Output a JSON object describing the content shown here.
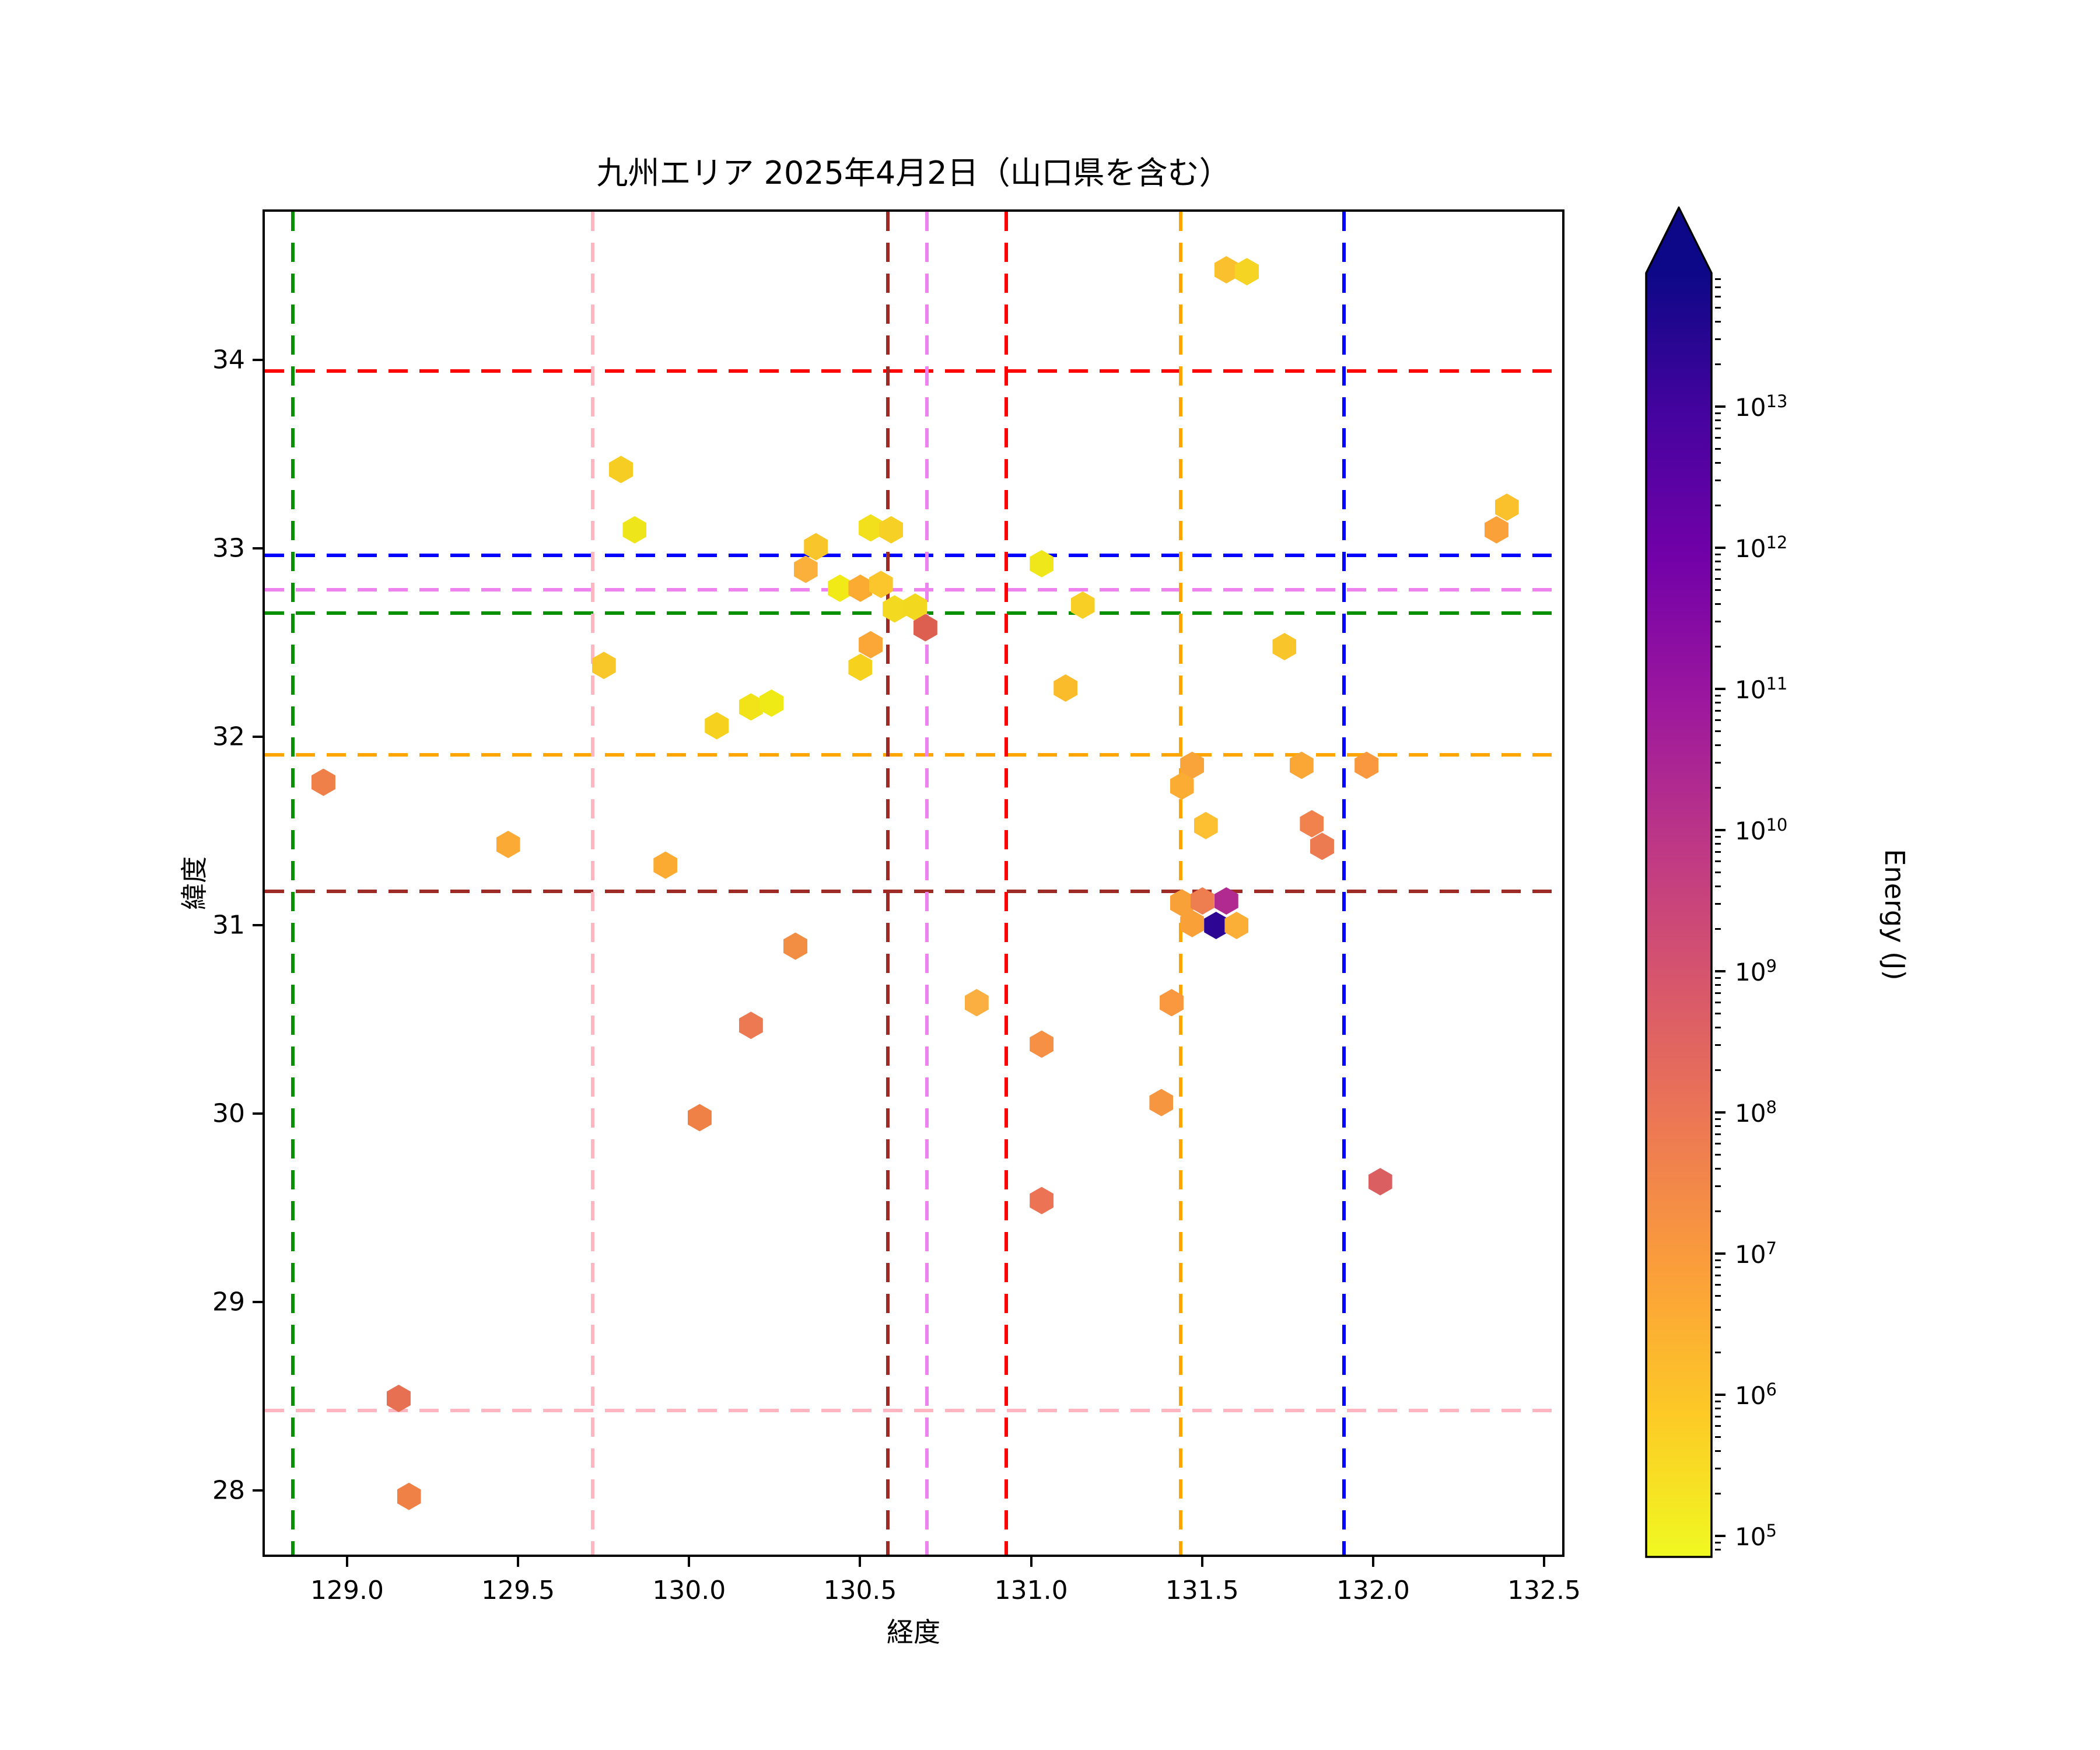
{
  "title": "九州エリア 2025年4月2日（山口県を含む）",
  "axes": {
    "xlabel": "経度",
    "ylabel": "緯度",
    "x_ticks": [
      {
        "label": "129.0",
        "value": 129.0
      },
      {
        "label": "129.5",
        "value": 129.5
      },
      {
        "label": "130.0",
        "value": 130.0
      },
      {
        "label": "130.5",
        "value": 130.5
      },
      {
        "label": "131.0",
        "value": 131.0
      },
      {
        "label": "131.5",
        "value": 131.5
      },
      {
        "label": "132.0",
        "value": 132.0
      },
      {
        "label": "132.5",
        "value": 132.5
      }
    ],
    "y_ticks": [
      {
        "label": "34",
        "value": 34
      },
      {
        "label": "33",
        "value": 33
      },
      {
        "label": "32",
        "value": 32
      },
      {
        "label": "31",
        "value": 31
      },
      {
        "label": "30",
        "value": 30
      },
      {
        "label": "29",
        "value": 29
      },
      {
        "label": "28",
        "value": 28
      }
    ],
    "xlim": [
      128.75,
      132.56
    ],
    "ylim": [
      27.65,
      34.8
    ]
  },
  "colorbar": {
    "label": "Energy (J)",
    "tick_exponents": [
      13,
      12,
      11,
      10,
      9,
      8,
      7,
      6,
      5
    ],
    "scale": "log",
    "extend": "max",
    "colormap": "plasma_r",
    "gradient_top_to_bottom": [
      "#0d0887",
      "#46039f",
      "#7201a8",
      "#9c179e",
      "#bd3786",
      "#d8576b",
      "#ed7953",
      "#fb9f3a",
      "#fdca26",
      "#f0f921"
    ]
  },
  "ref_lines": {
    "vertical": [
      {
        "name": "green",
        "color": "#089000",
        "lon": 128.835
      },
      {
        "name": "lightpink",
        "color": "#ffb6c1",
        "lon": 129.711
      },
      {
        "name": "darkred",
        "color": "#9e2a25",
        "lon": 130.574
      },
      {
        "name": "violet",
        "color": "#ee82ee",
        "lon": 130.689
      },
      {
        "name": "red",
        "color": "#ff0000",
        "lon": 130.921
      },
      {
        "name": "orange",
        "color": "#ffa500",
        "lon": 131.431
      },
      {
        "name": "blue",
        "color": "#0000ff",
        "lon": 131.908
      }
    ],
    "horizontal": [
      {
        "name": "red",
        "color": "#ff0000",
        "lat": 33.954
      },
      {
        "name": "blue",
        "color": "#0000ff",
        "lat": 32.975
      },
      {
        "name": "violet",
        "color": "#ee82ee",
        "lat": 32.793
      },
      {
        "name": "green",
        "color": "#089000",
        "lat": 32.669
      },
      {
        "name": "orange",
        "color": "#ffa500",
        "lat": 31.916
      },
      {
        "name": "darkred",
        "color": "#9e2a25",
        "lat": 31.192
      },
      {
        "name": "lightpink",
        "color": "#ffb6c1",
        "lat": 28.437
      }
    ]
  },
  "chart_data": {
    "type": "scatter",
    "marker": "hexagon",
    "title": "九州エリア 2025年4月2日（山口県を含む）",
    "xlabel": "経度",
    "ylabel": "緯度",
    "color_label": "Energy (J)",
    "points": [
      {
        "lon": 131.57,
        "lat": 34.48,
        "color": "#fbc02e",
        "log10_energy": 6.3
      },
      {
        "lon": 131.63,
        "lat": 34.47,
        "color": "#f6d423",
        "log10_energy": 5.8
      },
      {
        "lon": 129.8,
        "lat": 33.42,
        "color": "#f6cd22",
        "log10_energy": 6.0
      },
      {
        "lon": 129.84,
        "lat": 33.1,
        "color": "#efe51b",
        "log10_energy": 5.2
      },
      {
        "lon": 130.53,
        "lat": 33.11,
        "color": "#f2e01d",
        "log10_energy": 5.4
      },
      {
        "lon": 130.59,
        "lat": 33.1,
        "color": "#f7d026",
        "log10_energy": 5.8
      },
      {
        "lon": 130.37,
        "lat": 33.01,
        "color": "#f8c52b",
        "log10_energy": 6.1
      },
      {
        "lon": 130.34,
        "lat": 32.89,
        "color": "#fbb03c",
        "log10_energy": 6.6
      },
      {
        "lon": 131.03,
        "lat": 32.92,
        "color": "#f0e71a",
        "log10_energy": 5.2
      },
      {
        "lon": 132.39,
        "lat": 33.22,
        "color": "#fbc12d",
        "log10_energy": 6.3
      },
      {
        "lon": 132.36,
        "lat": 33.1,
        "color": "#faa239",
        "log10_energy": 7.0
      },
      {
        "lon": 130.44,
        "lat": 32.79,
        "color": "#f1ea17",
        "log10_energy": 5.1
      },
      {
        "lon": 130.5,
        "lat": 32.79,
        "color": "#fbab31",
        "log10_energy": 6.7
      },
      {
        "lon": 130.56,
        "lat": 32.81,
        "color": "#fac62c",
        "log10_energy": 6.2
      },
      {
        "lon": 130.6,
        "lat": 32.68,
        "color": "#f4d921",
        "log10_energy": 5.6
      },
      {
        "lon": 130.66,
        "lat": 32.69,
        "color": "#f2d91f",
        "log10_energy": 5.6
      },
      {
        "lon": 130.69,
        "lat": 32.58,
        "color": "#dd5f4f",
        "log10_energy": 8.6
      },
      {
        "lon": 131.15,
        "lat": 32.7,
        "color": "#f7cf25",
        "log10_energy": 5.9
      },
      {
        "lon": 130.53,
        "lat": 32.49,
        "color": "#faa738",
        "log10_energy": 6.9
      },
      {
        "lon": 131.74,
        "lat": 32.48,
        "color": "#f8c52b",
        "log10_energy": 6.1
      },
      {
        "lon": 130.5,
        "lat": 32.37,
        "color": "#f6d21f",
        "log10_energy": 5.8
      },
      {
        "lon": 129.75,
        "lat": 32.38,
        "color": "#f8c82a",
        "log10_energy": 6.1
      },
      {
        "lon": 131.1,
        "lat": 32.26,
        "color": "#fbbc2c",
        "log10_energy": 6.4
      },
      {
        "lon": 130.18,
        "lat": 32.16,
        "color": "#f2e318",
        "log10_energy": 5.3
      },
      {
        "lon": 130.24,
        "lat": 32.18,
        "color": "#efea15",
        "log10_energy": 5.1
      },
      {
        "lon": 130.08,
        "lat": 32.06,
        "color": "#f6d21f",
        "log10_energy": 5.8
      },
      {
        "lon": 128.93,
        "lat": 31.76,
        "color": "#ef8049",
        "log10_energy": 7.8
      },
      {
        "lon": 129.47,
        "lat": 31.43,
        "color": "#fbab35",
        "log10_energy": 6.7
      },
      {
        "lon": 129.93,
        "lat": 31.32,
        "color": "#fbab32",
        "log10_energy": 6.7
      },
      {
        "lon": 131.47,
        "lat": 31.85,
        "color": "#f9a33b",
        "log10_energy": 7.0
      },
      {
        "lon": 131.79,
        "lat": 31.85,
        "color": "#faa736",
        "log10_energy": 6.9
      },
      {
        "lon": 131.98,
        "lat": 31.85,
        "color": "#f9983e",
        "log10_energy": 7.2
      },
      {
        "lon": 131.44,
        "lat": 31.74,
        "color": "#fbac33",
        "log10_energy": 6.7
      },
      {
        "lon": 131.51,
        "lat": 31.53,
        "color": "#fcc032",
        "log10_energy": 6.2
      },
      {
        "lon": 131.82,
        "lat": 31.54,
        "color": "#f2824d",
        "log10_energy": 7.7
      },
      {
        "lon": 131.85,
        "lat": 31.42,
        "color": "#ed7b52",
        "log10_energy": 7.9
      },
      {
        "lon": 131.44,
        "lat": 31.12,
        "color": "#f9a139",
        "log10_energy": 7.1
      },
      {
        "lon": 131.5,
        "lat": 31.13,
        "color": "#ee7d4f",
        "log10_energy": 7.9
      },
      {
        "lon": 131.57,
        "lat": 31.13,
        "color": "#b02a90",
        "log10_energy": 10.3
      },
      {
        "lon": 131.47,
        "lat": 31.01,
        "color": "#f9a039",
        "log10_energy": 7.1
      },
      {
        "lon": 131.54,
        "lat": 31.0,
        "color": "#2d0694",
        "log10_energy": 13.4
      },
      {
        "lon": 131.6,
        "lat": 31.0,
        "color": "#fbaf37",
        "log10_energy": 6.6
      },
      {
        "lon": 131.41,
        "lat": 30.59,
        "color": "#f9983e",
        "log10_energy": 7.2
      },
      {
        "lon": 130.84,
        "lat": 30.59,
        "color": "#fbaf40",
        "log10_energy": 6.6
      },
      {
        "lon": 131.03,
        "lat": 30.37,
        "color": "#f59044",
        "log10_energy": 7.5
      },
      {
        "lon": 131.38,
        "lat": 30.06,
        "color": "#f79640",
        "log10_energy": 7.3
      },
      {
        "lon": 130.31,
        "lat": 30.89,
        "color": "#f28e44",
        "log10_energy": 7.6
      },
      {
        "lon": 130.18,
        "lat": 30.47,
        "color": "#ed7953",
        "log10_energy": 7.9
      },
      {
        "lon": 130.03,
        "lat": 29.98,
        "color": "#f08146",
        "log10_energy": 7.8
      },
      {
        "lon": 131.03,
        "lat": 29.54,
        "color": "#ec7455",
        "log10_energy": 8.1
      },
      {
        "lon": 132.02,
        "lat": 29.64,
        "color": "#d95f60",
        "log10_energy": 8.6
      },
      {
        "lon": 129.15,
        "lat": 28.49,
        "color": "#e76f52",
        "log10_energy": 8.2
      },
      {
        "lon": 129.18,
        "lat": 27.97,
        "color": "#f08146",
        "log10_energy": 7.8
      }
    ]
  }
}
